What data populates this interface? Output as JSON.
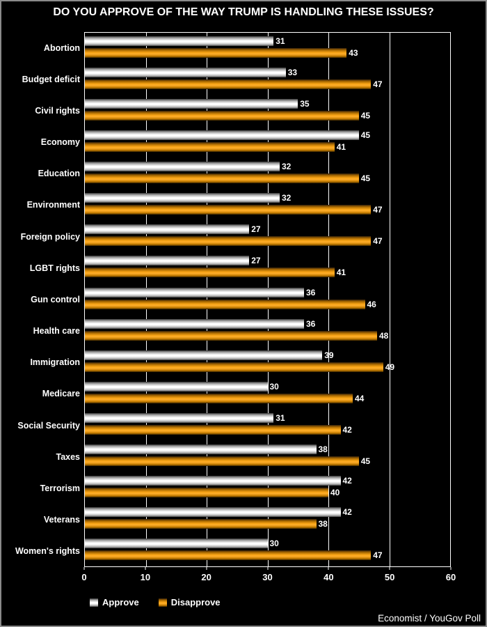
{
  "title": "DO YOU APPROVE OF THE WAY TRUMP IS HANDLING THESE ISSUES?",
  "source": "Economist / YouGov Poll",
  "colors": {
    "background": "#000000",
    "text": "#ffffff",
    "grid": "#ffffff",
    "approve": "#f2f2f2",
    "disapprove": "#f39c00"
  },
  "chart_data": {
    "type": "bar",
    "orientation": "horizontal",
    "title": "DO YOU APPROVE OF THE WAY TRUMP IS HANDLING THESE ISSUES?",
    "categories": [
      "Abortion",
      "Budget deficit",
      "Civil rights",
      "Economy",
      "Education",
      "Environment",
      "Foreign policy",
      "LGBT rights",
      "Gun control",
      "Health care",
      "Immigration",
      "Medicare",
      "Social Security",
      "Taxes",
      "Terrorism",
      "Veterans",
      "Women's rights"
    ],
    "series": [
      {
        "name": "Approve",
        "color": "#f2f2f2",
        "values": [
          31,
          33,
          35,
          45,
          32,
          32,
          27,
          27,
          36,
          36,
          39,
          30,
          31,
          38,
          42,
          42,
          30
        ]
      },
      {
        "name": "Disapprove",
        "color": "#f39c00",
        "values": [
          43,
          47,
          45,
          41,
          45,
          47,
          47,
          41,
          46,
          48,
          49,
          44,
          42,
          45,
          40,
          38,
          47
        ]
      }
    ],
    "xlim": [
      0,
      60
    ],
    "xticks": [
      0,
      10,
      20,
      30,
      40,
      50,
      60
    ],
    "grid": true,
    "data_labels": true,
    "legend_position": "bottom-left"
  }
}
